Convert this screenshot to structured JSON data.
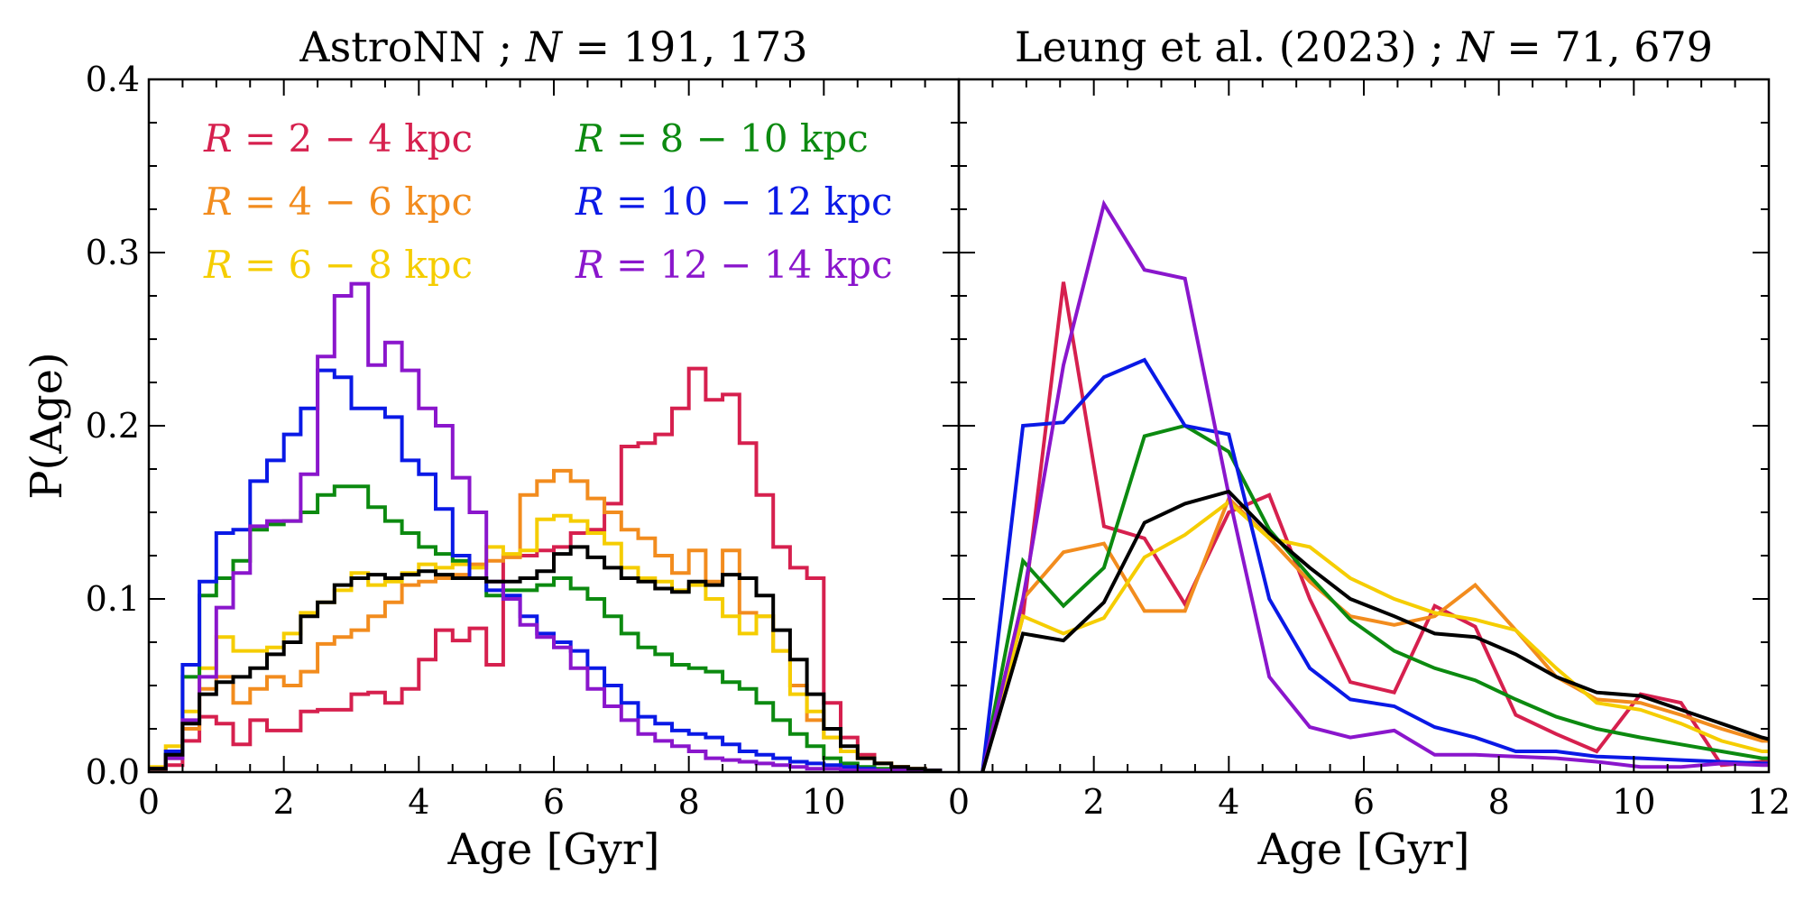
{
  "chart_data": [
    {
      "type": "line",
      "drawstyle": "step",
      "title_prefix": "AstroNN ; ",
      "title_var": "N",
      "title_rest": " = 191, 173",
      "xlabel": "Age [Gyr]",
      "ylabel": "P(Age)",
      "xlim": [
        0,
        12
      ],
      "ylim": [
        0,
        0.4
      ],
      "xticks": [
        "0",
        "2",
        "4",
        "6",
        "8",
        "10"
      ],
      "yticks": [
        "0.0",
        "0.1",
        "0.2",
        "0.3",
        "0.4"
      ],
      "legend_loc": "top-left",
      "legend": [
        {
          "var": "R",
          "text": " = 2 − 4 kpc",
          "color": "#d6204e"
        },
        {
          "var": "R",
          "text": " = 4 − 6 kpc",
          "color": "#f28c1e"
        },
        {
          "var": "R",
          "text": " = 6 − 8 kpc",
          "color": "#f5cd00"
        },
        {
          "var": "R",
          "text": " = 8 − 10 kpc",
          "color": "#0c8a10"
        },
        {
          "var": "R",
          "text": " = 10 − 12 kpc",
          "color": "#0a19e6"
        },
        {
          "var": "R",
          "text": " = 12 − 14 kpc",
          "color": "#8a16cc"
        }
      ],
      "bin_edges": [
        0,
        0.25,
        0.5,
        0.75,
        1.0,
        1.25,
        1.5,
        1.75,
        2.0,
        2.25,
        2.5,
        2.75,
        3.0,
        3.25,
        3.5,
        3.75,
        4.0,
        4.25,
        4.5,
        4.75,
        5.0,
        5.25,
        5.5,
        5.75,
        6.0,
        6.25,
        6.5,
        6.75,
        7.0,
        7.25,
        7.5,
        7.75,
        8.0,
        8.25,
        8.5,
        8.75,
        9.0,
        9.25,
        9.5,
        9.75,
        10.0,
        10.25,
        10.5,
        10.75,
        11.0,
        11.25,
        11.5,
        11.75
      ],
      "series": [
        {
          "color": "#d6204e",
          "values": [
            0.001,
            0.004,
            0.018,
            0.032,
            0.028,
            0.016,
            0.03,
            0.024,
            0.024,
            0.035,
            0.036,
            0.036,
            0.045,
            0.046,
            0.04,
            0.048,
            0.065,
            0.082,
            0.076,
            0.083,
            0.062,
            0.125,
            0.125,
            0.128,
            0.13,
            0.138,
            0.14,
            0.155,
            0.188,
            0.19,
            0.195,
            0.21,
            0.233,
            0.215,
            0.218,
            0.19,
            0.16,
            0.13,
            0.118,
            0.112,
            0.04,
            0.02,
            0.01,
            0.005,
            0.003,
            0.002,
            0.001
          ]
        },
        {
          "color": "#f28c1e",
          "values": [
            0.001,
            0.008,
            0.025,
            0.048,
            0.055,
            0.04,
            0.048,
            0.055,
            0.05,
            0.058,
            0.074,
            0.078,
            0.082,
            0.09,
            0.098,
            0.108,
            0.11,
            0.112,
            0.114,
            0.12,
            0.122,
            0.124,
            0.16,
            0.168,
            0.174,
            0.168,
            0.158,
            0.15,
            0.14,
            0.135,
            0.125,
            0.115,
            0.128,
            0.11,
            0.128,
            0.092,
            0.09,
            0.07,
            0.05,
            0.03,
            0.02,
            0.012,
            0.008,
            0.005,
            0.003,
            0.002,
            0.001
          ]
        },
        {
          "color": "#f5cd00",
          "values": [
            0.003,
            0.015,
            0.035,
            0.06,
            0.078,
            0.07,
            0.07,
            0.072,
            0.08,
            0.092,
            0.098,
            0.105,
            0.115,
            0.108,
            0.11,
            0.115,
            0.12,
            0.118,
            0.12,
            0.118,
            0.13,
            0.126,
            0.128,
            0.146,
            0.148,
            0.145,
            0.138,
            0.132,
            0.118,
            0.112,
            0.11,
            0.105,
            0.108,
            0.1,
            0.09,
            0.08,
            0.09,
            0.07,
            0.045,
            0.035,
            0.02,
            0.012,
            0.008,
            0.005,
            0.003,
            0.002,
            0.001
          ]
        },
        {
          "color": "#0c8a10",
          "values": [
            0.002,
            0.01,
            0.055,
            0.102,
            0.112,
            0.122,
            0.14,
            0.143,
            0.145,
            0.15,
            0.16,
            0.165,
            0.165,
            0.153,
            0.145,
            0.138,
            0.13,
            0.126,
            0.122,
            0.112,
            0.102,
            0.105,
            0.105,
            0.108,
            0.112,
            0.106,
            0.1,
            0.09,
            0.08,
            0.072,
            0.068,
            0.062,
            0.06,
            0.058,
            0.052,
            0.048,
            0.04,
            0.03,
            0.022,
            0.015,
            0.008,
            0.005,
            0.003,
            0.002,
            0.001,
            0.001,
            0.001
          ]
        },
        {
          "color": "#0a19e6",
          "values": [
            0.002,
            0.012,
            0.062,
            0.11,
            0.138,
            0.14,
            0.168,
            0.18,
            0.195,
            0.21,
            0.232,
            0.228,
            0.21,
            0.21,
            0.205,
            0.18,
            0.172,
            0.152,
            0.125,
            0.112,
            0.105,
            0.102,
            0.09,
            0.08,
            0.075,
            0.07,
            0.06,
            0.05,
            0.04,
            0.032,
            0.028,
            0.024,
            0.022,
            0.02,
            0.016,
            0.012,
            0.01,
            0.008,
            0.006,
            0.005,
            0.004,
            0.003,
            0.002,
            0.001,
            0.001,
            0.001,
            0.001
          ]
        },
        {
          "color": "#8a16cc",
          "values": [
            0.002,
            0.008,
            0.03,
            0.055,
            0.095,
            0.115,
            0.142,
            0.145,
            0.145,
            0.172,
            0.24,
            0.275,
            0.282,
            0.235,
            0.248,
            0.232,
            0.21,
            0.2,
            0.17,
            0.15,
            0.11,
            0.1,
            0.085,
            0.078,
            0.072,
            0.06,
            0.048,
            0.038,
            0.03,
            0.022,
            0.018,
            0.015,
            0.012,
            0.008,
            0.007,
            0.006,
            0.005,
            0.004,
            0.003,
            0.002,
            0.002,
            0.001,
            0.001,
            0.001,
            0.001,
            0.001,
            0.001
          ]
        },
        {
          "color": "#000000",
          "values": [
            0.002,
            0.01,
            0.028,
            0.045,
            0.052,
            0.055,
            0.06,
            0.068,
            0.075,
            0.09,
            0.098,
            0.108,
            0.112,
            0.114,
            0.112,
            0.114,
            0.116,
            0.114,
            0.112,
            0.112,
            0.11,
            0.11,
            0.112,
            0.116,
            0.126,
            0.13,
            0.124,
            0.118,
            0.112,
            0.11,
            0.106,
            0.104,
            0.11,
            0.108,
            0.114,
            0.112,
            0.102,
            0.082,
            0.065,
            0.045,
            0.025,
            0.015,
            0.008,
            0.005,
            0.003,
            0.002,
            0.001
          ]
        }
      ]
    },
    {
      "type": "line",
      "title_prefix": "Leung et al. (2023) ; ",
      "title_var": "N",
      "title_rest": " = 71, 679",
      "xlabel": "Age [Gyr]",
      "xlim": [
        0,
        12
      ],
      "ylim": [
        0,
        0.4
      ],
      "xticks": [
        "0",
        "2",
        "4",
        "6",
        "8",
        "10",
        "12"
      ],
      "x": [
        0.35,
        0.95,
        1.55,
        2.15,
        2.75,
        3.35,
        4.0,
        4.6,
        5.2,
        5.8,
        6.45,
        7.05,
        7.65,
        8.25,
        8.85,
        9.45,
        10.1,
        10.7,
        11.3,
        11.9,
        12.0
      ],
      "series": [
        {
          "color": "#d6204e",
          "values": [
            0.0,
            0.09,
            0.283,
            0.142,
            0.135,
            0.097,
            0.15,
            0.16,
            0.1,
            0.052,
            0.046,
            0.096,
            0.084,
            0.033,
            0.022,
            0.012,
            0.045,
            0.04,
            0.004,
            0.006,
            0.006
          ]
        },
        {
          "color": "#f28c1e",
          "values": [
            0.0,
            0.1,
            0.127,
            0.132,
            0.093,
            0.093,
            0.158,
            0.135,
            0.11,
            0.09,
            0.085,
            0.09,
            0.108,
            0.082,
            0.055,
            0.042,
            0.04,
            0.033,
            0.025,
            0.018,
            0.018
          ]
        },
        {
          "color": "#f5cd00",
          "values": [
            0.0,
            0.09,
            0.08,
            0.089,
            0.124,
            0.137,
            0.156,
            0.135,
            0.13,
            0.112,
            0.1,
            0.092,
            0.088,
            0.082,
            0.06,
            0.04,
            0.036,
            0.028,
            0.018,
            0.012,
            0.012
          ]
        },
        {
          "color": "#0c8a10",
          "values": [
            0.0,
            0.122,
            0.096,
            0.118,
            0.194,
            0.2,
            0.185,
            0.14,
            0.113,
            0.088,
            0.07,
            0.06,
            0.053,
            0.042,
            0.032,
            0.025,
            0.02,
            0.016,
            0.012,
            0.008,
            0.008
          ]
        },
        {
          "color": "#0a19e6",
          "values": [
            0.0,
            0.2,
            0.202,
            0.228,
            0.238,
            0.2,
            0.195,
            0.1,
            0.06,
            0.042,
            0.038,
            0.026,
            0.02,
            0.012,
            0.012,
            0.009,
            0.008,
            0.007,
            0.006,
            0.005,
            0.005
          ]
        },
        {
          "color": "#8a16cc",
          "values": [
            0.0,
            0.1,
            0.235,
            0.328,
            0.29,
            0.285,
            0.16,
            0.055,
            0.026,
            0.02,
            0.024,
            0.01,
            0.01,
            0.009,
            0.008,
            0.006,
            0.003,
            0.003,
            0.005,
            0.004,
            0.004
          ]
        },
        {
          "color": "#000000",
          "values": [
            0.0,
            0.08,
            0.076,
            0.098,
            0.144,
            0.155,
            0.162,
            0.138,
            0.118,
            0.1,
            0.09,
            0.08,
            0.078,
            0.068,
            0.055,
            0.046,
            0.044,
            0.036,
            0.028,
            0.02,
            0.019
          ]
        }
      ]
    }
  ]
}
